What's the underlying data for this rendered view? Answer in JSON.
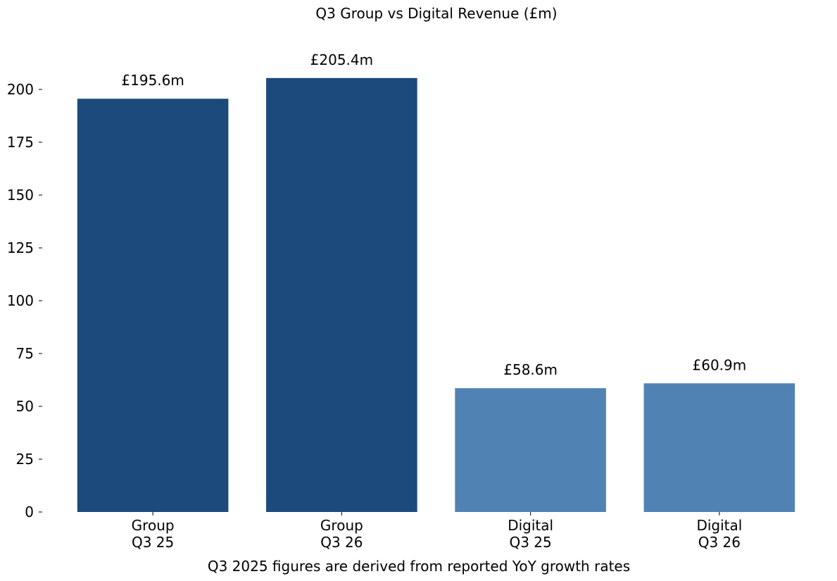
{
  "chart_data": {
    "type": "bar",
    "title": "Q3 Group vs Digital Revenue (£m)",
    "xlabel": "Q3 2025 figures are derived from reported YoY growth rates",
    "ylabel": "",
    "ylim": [
      0,
      210
    ],
    "yticks": [
      0,
      25,
      50,
      75,
      100,
      125,
      150,
      175,
      200
    ],
    "grid": false,
    "categories": [
      [
        "Group",
        "Q3 25"
      ],
      [
        "Group",
        "Q3 26"
      ],
      [
        "Digital",
        "Q3 25"
      ],
      [
        "Digital",
        "Q3 26"
      ]
    ],
    "values": [
      195.6,
      205.4,
      58.6,
      60.9
    ],
    "value_labels": [
      "£195.6m",
      "£205.4m",
      "£58.6m",
      "£60.9m"
    ],
    "colors": [
      "#1c4a7c",
      "#1c4a7c",
      "#5083b3",
      "#5083b3"
    ]
  }
}
